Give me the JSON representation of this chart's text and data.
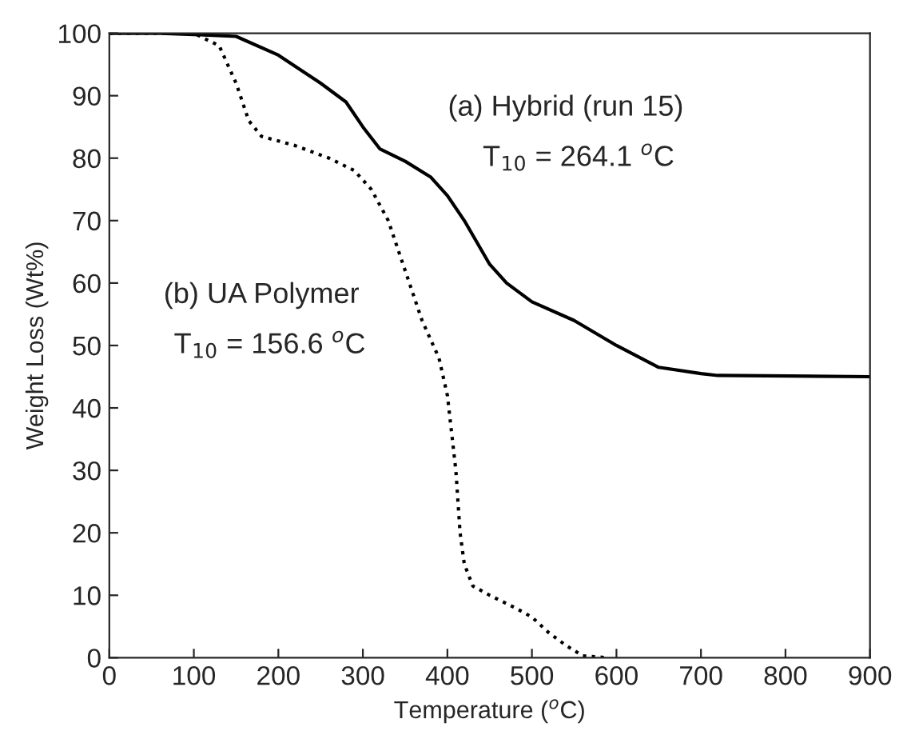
{
  "chart_data": {
    "type": "line",
    "xlabel": "Temperature ($^{o}$C)",
    "ylabel": "Weight Loss (Wt%)",
    "xlim": [
      0,
      900
    ],
    "ylim": [
      0,
      100
    ],
    "xticks": [
      0,
      100,
      200,
      300,
      400,
      500,
      600,
      700,
      800,
      900
    ],
    "yticks": [
      0,
      10,
      20,
      30,
      40,
      50,
      60,
      70,
      80,
      90,
      100
    ],
    "grid": false,
    "legend": false,
    "series": [
      {
        "color": "#000000",
        "line_style": "solid",
        "x": [
          0,
          60,
          100,
          150,
          200,
          250,
          280,
          300,
          320,
          350,
          380,
          400,
          420,
          450,
          470,
          500,
          550,
          600,
          650,
          700,
          720,
          900
        ],
        "values": [
          100,
          100,
          99.8,
          99.5,
          96.5,
          92,
          89,
          85,
          81.5,
          79.5,
          77,
          74,
          70,
          63,
          60,
          57,
          54,
          50,
          46.5,
          45.5,
          45.2,
          45
        ]
      },
      {
        "color": "#000000",
        "line_style": "dotted",
        "x": [
          0,
          100,
          130,
          150,
          165,
          180,
          220,
          260,
          290,
          310,
          330,
          350,
          370,
          390,
          400,
          410,
          415,
          420,
          430,
          450,
          480,
          500,
          520,
          540,
          560,
          590
        ],
        "values": [
          100,
          100,
          98,
          92,
          86,
          83.5,
          82,
          80,
          78,
          75,
          70,
          62,
          54,
          48,
          42,
          30,
          20,
          15,
          11.5,
          10,
          8,
          6.5,
          4,
          2,
          0.3,
          0
        ]
      }
    ],
    "annotations": [
      "(a) Hybrid (run 15)",
      "T$_{10}$ = 264.1 $^{o}$C",
      "(b) UA Polymer",
      "T$_{10}$ = 156.6 $^{o}$C"
    ]
  }
}
